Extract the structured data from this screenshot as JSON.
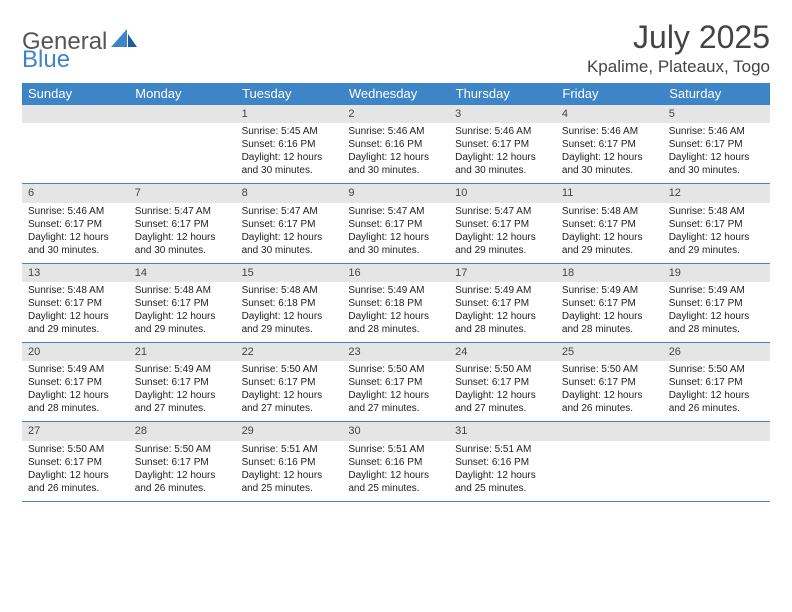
{
  "branding": {
    "logo_text_a": "General",
    "logo_text_b": "Blue",
    "logo_color_gray": "#757575",
    "logo_color_blue": "#3d85c6"
  },
  "header": {
    "month_title": "July 2025",
    "location": "Kpalime, Plateaux, Togo"
  },
  "colors": {
    "header_bg": "#3d85c6",
    "header_text": "#ffffff",
    "daynum_bg": "#e5e5e5",
    "text": "#222222",
    "page_bg": "#ffffff",
    "title_text": "#444444"
  },
  "daysOfWeek": [
    "Sunday",
    "Monday",
    "Tuesday",
    "Wednesday",
    "Thursday",
    "Friday",
    "Saturday"
  ],
  "weeks": [
    [
      null,
      null,
      {
        "num": "1",
        "sunrise": "Sunrise: 5:45 AM",
        "sunset": "Sunset: 6:16 PM",
        "daylight1": "Daylight: 12 hours",
        "daylight2": "and 30 minutes."
      },
      {
        "num": "2",
        "sunrise": "Sunrise: 5:46 AM",
        "sunset": "Sunset: 6:16 PM",
        "daylight1": "Daylight: 12 hours",
        "daylight2": "and 30 minutes."
      },
      {
        "num": "3",
        "sunrise": "Sunrise: 5:46 AM",
        "sunset": "Sunset: 6:17 PM",
        "daylight1": "Daylight: 12 hours",
        "daylight2": "and 30 minutes."
      },
      {
        "num": "4",
        "sunrise": "Sunrise: 5:46 AM",
        "sunset": "Sunset: 6:17 PM",
        "daylight1": "Daylight: 12 hours",
        "daylight2": "and 30 minutes."
      },
      {
        "num": "5",
        "sunrise": "Sunrise: 5:46 AM",
        "sunset": "Sunset: 6:17 PM",
        "daylight1": "Daylight: 12 hours",
        "daylight2": "and 30 minutes."
      }
    ],
    [
      {
        "num": "6",
        "sunrise": "Sunrise: 5:46 AM",
        "sunset": "Sunset: 6:17 PM",
        "daylight1": "Daylight: 12 hours",
        "daylight2": "and 30 minutes."
      },
      {
        "num": "7",
        "sunrise": "Sunrise: 5:47 AM",
        "sunset": "Sunset: 6:17 PM",
        "daylight1": "Daylight: 12 hours",
        "daylight2": "and 30 minutes."
      },
      {
        "num": "8",
        "sunrise": "Sunrise: 5:47 AM",
        "sunset": "Sunset: 6:17 PM",
        "daylight1": "Daylight: 12 hours",
        "daylight2": "and 30 minutes."
      },
      {
        "num": "9",
        "sunrise": "Sunrise: 5:47 AM",
        "sunset": "Sunset: 6:17 PM",
        "daylight1": "Daylight: 12 hours",
        "daylight2": "and 30 minutes."
      },
      {
        "num": "10",
        "sunrise": "Sunrise: 5:47 AM",
        "sunset": "Sunset: 6:17 PM",
        "daylight1": "Daylight: 12 hours",
        "daylight2": "and 29 minutes."
      },
      {
        "num": "11",
        "sunrise": "Sunrise: 5:48 AM",
        "sunset": "Sunset: 6:17 PM",
        "daylight1": "Daylight: 12 hours",
        "daylight2": "and 29 minutes."
      },
      {
        "num": "12",
        "sunrise": "Sunrise: 5:48 AM",
        "sunset": "Sunset: 6:17 PM",
        "daylight1": "Daylight: 12 hours",
        "daylight2": "and 29 minutes."
      }
    ],
    [
      {
        "num": "13",
        "sunrise": "Sunrise: 5:48 AM",
        "sunset": "Sunset: 6:17 PM",
        "daylight1": "Daylight: 12 hours",
        "daylight2": "and 29 minutes."
      },
      {
        "num": "14",
        "sunrise": "Sunrise: 5:48 AM",
        "sunset": "Sunset: 6:17 PM",
        "daylight1": "Daylight: 12 hours",
        "daylight2": "and 29 minutes."
      },
      {
        "num": "15",
        "sunrise": "Sunrise: 5:48 AM",
        "sunset": "Sunset: 6:18 PM",
        "daylight1": "Daylight: 12 hours",
        "daylight2": "and 29 minutes."
      },
      {
        "num": "16",
        "sunrise": "Sunrise: 5:49 AM",
        "sunset": "Sunset: 6:18 PM",
        "daylight1": "Daylight: 12 hours",
        "daylight2": "and 28 minutes."
      },
      {
        "num": "17",
        "sunrise": "Sunrise: 5:49 AM",
        "sunset": "Sunset: 6:17 PM",
        "daylight1": "Daylight: 12 hours",
        "daylight2": "and 28 minutes."
      },
      {
        "num": "18",
        "sunrise": "Sunrise: 5:49 AM",
        "sunset": "Sunset: 6:17 PM",
        "daylight1": "Daylight: 12 hours",
        "daylight2": "and 28 minutes."
      },
      {
        "num": "19",
        "sunrise": "Sunrise: 5:49 AM",
        "sunset": "Sunset: 6:17 PM",
        "daylight1": "Daylight: 12 hours",
        "daylight2": "and 28 minutes."
      }
    ],
    [
      {
        "num": "20",
        "sunrise": "Sunrise: 5:49 AM",
        "sunset": "Sunset: 6:17 PM",
        "daylight1": "Daylight: 12 hours",
        "daylight2": "and 28 minutes."
      },
      {
        "num": "21",
        "sunrise": "Sunrise: 5:49 AM",
        "sunset": "Sunset: 6:17 PM",
        "daylight1": "Daylight: 12 hours",
        "daylight2": "and 27 minutes."
      },
      {
        "num": "22",
        "sunrise": "Sunrise: 5:50 AM",
        "sunset": "Sunset: 6:17 PM",
        "daylight1": "Daylight: 12 hours",
        "daylight2": "and 27 minutes."
      },
      {
        "num": "23",
        "sunrise": "Sunrise: 5:50 AM",
        "sunset": "Sunset: 6:17 PM",
        "daylight1": "Daylight: 12 hours",
        "daylight2": "and 27 minutes."
      },
      {
        "num": "24",
        "sunrise": "Sunrise: 5:50 AM",
        "sunset": "Sunset: 6:17 PM",
        "daylight1": "Daylight: 12 hours",
        "daylight2": "and 27 minutes."
      },
      {
        "num": "25",
        "sunrise": "Sunrise: 5:50 AM",
        "sunset": "Sunset: 6:17 PM",
        "daylight1": "Daylight: 12 hours",
        "daylight2": "and 26 minutes."
      },
      {
        "num": "26",
        "sunrise": "Sunrise: 5:50 AM",
        "sunset": "Sunset: 6:17 PM",
        "daylight1": "Daylight: 12 hours",
        "daylight2": "and 26 minutes."
      }
    ],
    [
      {
        "num": "27",
        "sunrise": "Sunrise: 5:50 AM",
        "sunset": "Sunset: 6:17 PM",
        "daylight1": "Daylight: 12 hours",
        "daylight2": "and 26 minutes."
      },
      {
        "num": "28",
        "sunrise": "Sunrise: 5:50 AM",
        "sunset": "Sunset: 6:17 PM",
        "daylight1": "Daylight: 12 hours",
        "daylight2": "and 26 minutes."
      },
      {
        "num": "29",
        "sunrise": "Sunrise: 5:51 AM",
        "sunset": "Sunset: 6:16 PM",
        "daylight1": "Daylight: 12 hours",
        "daylight2": "and 25 minutes."
      },
      {
        "num": "30",
        "sunrise": "Sunrise: 5:51 AM",
        "sunset": "Sunset: 6:16 PM",
        "daylight1": "Daylight: 12 hours",
        "daylight2": "and 25 minutes."
      },
      {
        "num": "31",
        "sunrise": "Sunrise: 5:51 AM",
        "sunset": "Sunset: 6:16 PM",
        "daylight1": "Daylight: 12 hours",
        "daylight2": "and 25 minutes."
      },
      null,
      null
    ]
  ]
}
